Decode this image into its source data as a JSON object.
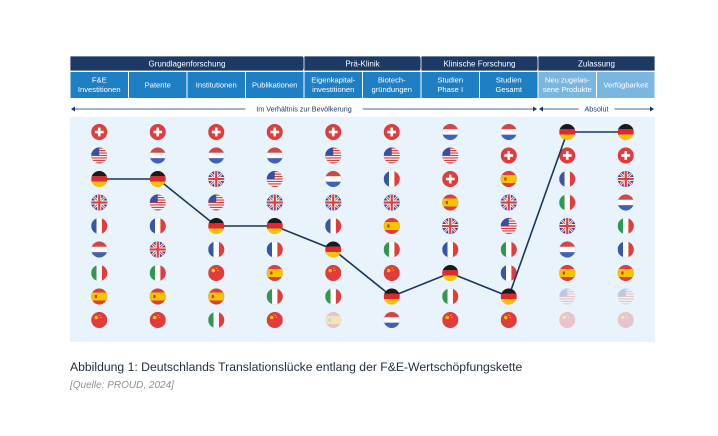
{
  "caption": "Abbildung 1: Deutschlands Translationslücke entlang der F&E-Wertschöpfungskette",
  "source": "[Quelle: PROUD, 2024]",
  "colors": {
    "phase_header": "#1c3a63",
    "category_header": "#1f7fc4",
    "category_header_light": "#7ab7e0",
    "panel_background": "#e9f3fb",
    "line": "#17375e"
  },
  "chart_data": {
    "type": "line",
    "title": "",
    "ylabel": "",
    "xlabel": "",
    "phases": [
      {
        "label": "Grundlagenforschung",
        "span": 4
      },
      {
        "label": "Prä-Klinik",
        "span": 2
      },
      {
        "label": "Klinische Forschung",
        "span": 2
      },
      {
        "label": "Zulassung",
        "span": 2
      }
    ],
    "categories": [
      "F&E\nInvestitionen",
      "Patente",
      "Institutionen",
      "Publikationen",
      "Eigenkapital-\ninvestitionen",
      "Biotech-\ngründungen",
      "Studien\nPhase I",
      "Studien\nGesamt",
      "Neu zugelas-\nsene Produkte",
      "Verfügbarkeit"
    ],
    "scales": [
      {
        "label": "Im Verhältnis zur Bevölkerung",
        "span": 8
      },
      {
        "label": "Absolut",
        "span": 2
      }
    ],
    "rank_axis": [
      1,
      9
    ],
    "rankings": [
      [
        "ch",
        "us",
        "de",
        "gb",
        "fr",
        "nl",
        "it",
        "es",
        "cn"
      ],
      [
        "ch",
        "nl",
        "de",
        "us",
        "fr",
        "gb",
        "it",
        "es",
        "cn"
      ],
      [
        "ch",
        "nl",
        "gb",
        "us",
        "de",
        "fr",
        "cn",
        "es",
        "it"
      ],
      [
        "ch",
        "nl",
        "us",
        "gb",
        "de",
        "fr",
        "es",
        "it",
        "cn"
      ],
      [
        "ch",
        "us",
        "nl",
        "gb",
        "fr",
        "de",
        "cn",
        "it",
        "es"
      ],
      [
        "ch",
        "us",
        "fr",
        "gb",
        "es",
        "it",
        "cn",
        "de",
        "nl"
      ],
      [
        "nl",
        "us",
        "ch",
        "es",
        "gb",
        "fr",
        "de",
        "it",
        "cn"
      ],
      [
        "nl",
        "ch",
        "es",
        "gb",
        "us",
        "it",
        "fr",
        "de",
        "cn"
      ],
      [
        "de",
        "ch",
        "fr",
        "it",
        "gb",
        "nl",
        "es",
        "us",
        "cn"
      ],
      [
        "de",
        "ch",
        "gb",
        "nl",
        "it",
        "fr",
        "es",
        "us",
        "cn"
      ]
    ],
    "faded_flags": [
      [
        4,
        8
      ],
      [
        8,
        7
      ],
      [
        8,
        8
      ],
      [
        9,
        7
      ],
      [
        9,
        8
      ]
    ],
    "series": [
      {
        "country": "de",
        "ranks": [
          3,
          3,
          5,
          5,
          6,
          8,
          7,
          8,
          1,
          1
        ]
      }
    ]
  }
}
